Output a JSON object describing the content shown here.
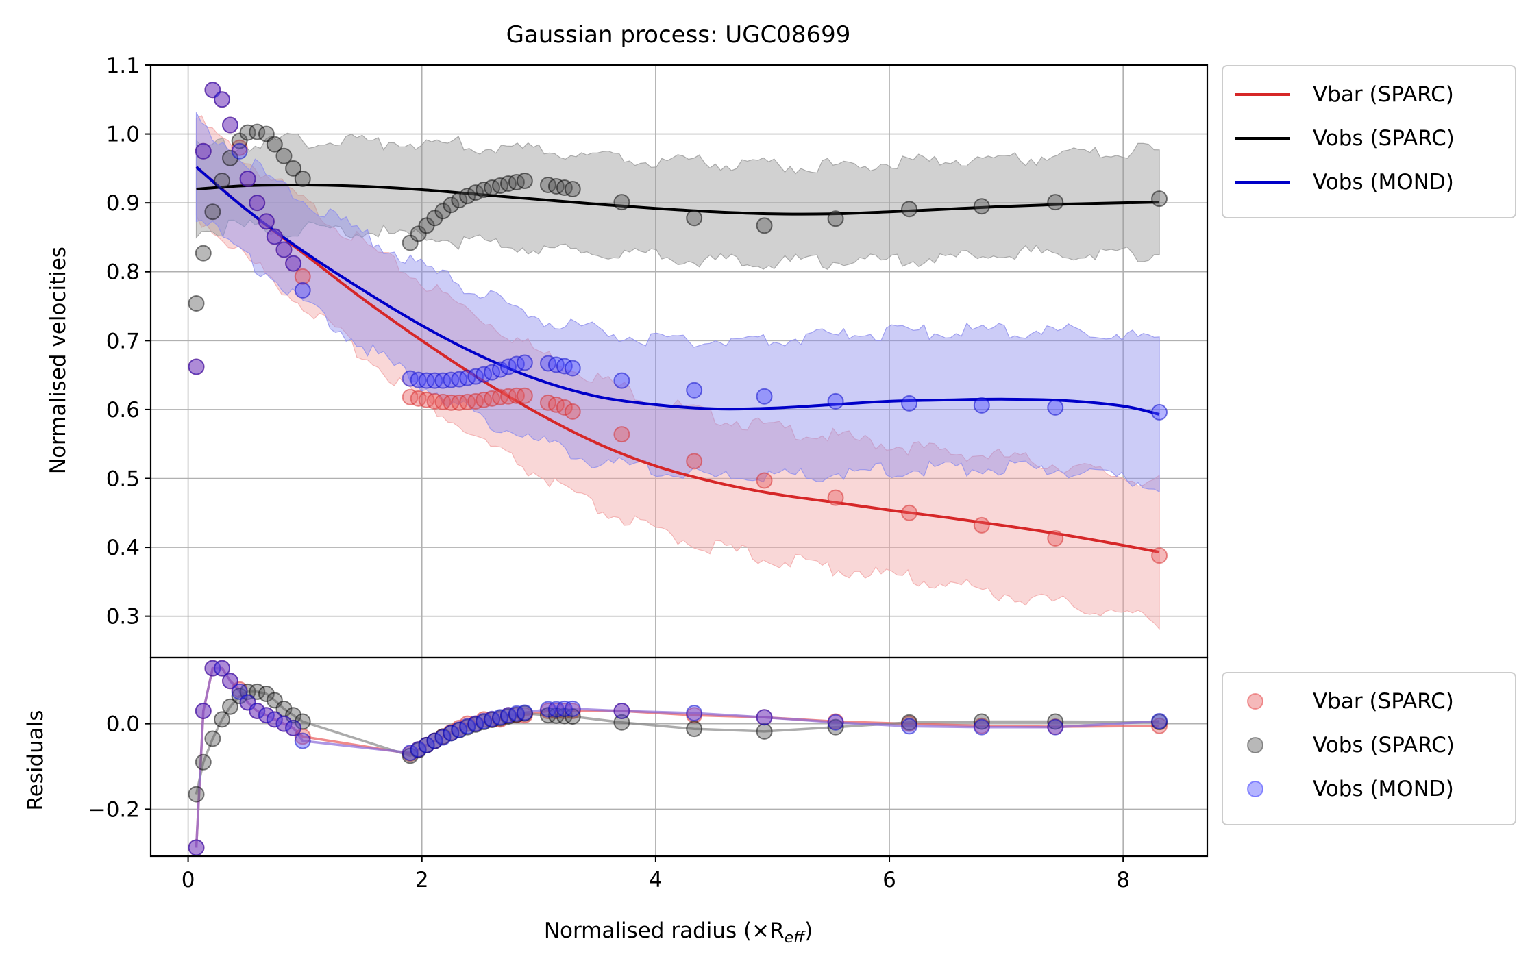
{
  "chart_data": {
    "type": "line",
    "title": "Gaussian process: UGC08699",
    "xlabel_main": "Normalised radius (×R",
    "xlabel_sub": "eff",
    "xlabel_close": ")",
    "ylabel_top": "Normalised velocities",
    "ylabel_bottom": "Residuals",
    "xlim": [
      -0.32,
      8.72
    ],
    "ylim_top": [
      0.24,
      1.1
    ],
    "ylim_bottom": [
      -0.31,
      0.155
    ],
    "xticks": [
      0,
      2,
      4,
      6,
      8
    ],
    "xtick_labels": [
      "0",
      "2",
      "4",
      "6",
      "8"
    ],
    "yticks_top": [
      0.3,
      0.4,
      0.5,
      0.6,
      0.7,
      0.8,
      0.9,
      1.0,
      1.1
    ],
    "ytick_labels_top": [
      "0.3",
      "0.4",
      "0.5",
      "0.6",
      "0.7",
      "0.8",
      "0.9",
      "1.0",
      "1.1"
    ],
    "yticks_bottom": [
      -0.2,
      0.0
    ],
    "ytick_labels_bottom": [
      "−0.2",
      "0.0"
    ],
    "grid": true,
    "legend_top": {
      "placement": "outside-right-top",
      "entries": [
        {
          "label": "Vbar (SPARC)",
          "color": "#d62728"
        },
        {
          "label": "Vobs (SPARC)",
          "color": "#000000"
        },
        {
          "label": "Vobs (MOND)",
          "color": "#0000c8"
        }
      ]
    },
    "legend_bottom": {
      "placement": "outside-right",
      "entries": [
        {
          "label": "Vbar (SPARC)",
          "color": "#e8595a"
        },
        {
          "label": "Vobs (SPARC)",
          "color": "#555555"
        },
        {
          "label": "Vobs (MOND)",
          "color": "#4d4dff"
        }
      ]
    },
    "x": [
      0.07,
      0.13,
      0.21,
      0.29,
      0.36,
      0.44,
      0.51,
      0.59,
      0.67,
      0.74,
      0.82,
      0.9,
      0.98,
      1.9,
      1.97,
      2.04,
      2.11,
      2.18,
      2.25,
      2.32,
      2.39,
      2.46,
      2.53,
      2.6,
      2.67,
      2.74,
      2.81,
      2.88,
      3.08,
      3.15,
      3.22,
      3.29,
      3.71,
      4.33,
      4.93,
      5.54,
      6.17,
      6.79,
      7.42,
      8.31
    ],
    "series_points": [
      {
        "name": "Vbar (SPARC)",
        "color": "#d62728",
        "values": [
          0.662,
          0.975,
          1.064,
          1.05,
          1.013,
          0.98,
          0.935,
          0.9,
          0.873,
          0.851,
          0.832,
          0.812,
          0.793,
          0.618,
          0.616,
          0.614,
          0.612,
          0.611,
          0.61,
          0.61,
          0.611,
          0.612,
          0.614,
          0.616,
          0.618,
          0.619,
          0.62,
          0.62,
          0.61,
          0.607,
          0.603,
          0.597,
          0.564,
          0.525,
          0.497,
          0.472,
          0.45,
          0.432,
          0.413,
          0.388
        ]
      },
      {
        "name": "Vobs (SPARC)",
        "color": "#000000",
        "values": [
          0.754,
          0.827,
          0.887,
          0.932,
          0.965,
          0.99,
          1.002,
          1.003,
          1.0,
          0.985,
          0.968,
          0.95,
          0.935,
          0.842,
          0.855,
          0.867,
          0.878,
          0.888,
          0.897,
          0.904,
          0.91,
          0.915,
          0.919,
          0.922,
          0.925,
          0.928,
          0.93,
          0.932,
          0.926,
          0.924,
          0.922,
          0.92,
          0.901,
          0.878,
          0.867,
          0.877,
          0.891,
          0.895,
          0.901,
          0.906
        ]
      },
      {
        "name": "Vobs (MOND)",
        "color": "#0000c8",
        "values": [
          0.662,
          0.975,
          1.064,
          1.05,
          1.013,
          0.975,
          0.935,
          0.9,
          0.873,
          0.851,
          0.832,
          0.812,
          0.773,
          0.645,
          0.643,
          0.642,
          0.642,
          0.642,
          0.643,
          0.644,
          0.646,
          0.648,
          0.651,
          0.654,
          0.658,
          0.662,
          0.666,
          0.668,
          0.667,
          0.665,
          0.663,
          0.66,
          0.642,
          0.628,
          0.619,
          0.612,
          0.609,
          0.606,
          0.603,
          0.596
        ]
      }
    ],
    "fit_x": [
      0.07,
      0.5,
      1.0,
      1.5,
      2.0,
      2.5,
      3.0,
      3.5,
      4.0,
      4.5,
      5.0,
      5.5,
      6.0,
      6.5,
      7.0,
      7.5,
      8.0,
      8.31
    ],
    "fit_lines": [
      {
        "name": "Vbar (SPARC)",
        "color": "#d62728",
        "values": [
          0.952,
          0.89,
          0.825,
          0.76,
          0.7,
          0.644,
          0.594,
          0.551,
          0.518,
          0.495,
          0.478,
          0.466,
          0.454,
          0.443,
          0.431,
          0.418,
          0.403,
          0.393
        ],
        "band_half": [
          0.07,
          0.07,
          0.075,
          0.08,
          0.085,
          0.09,
          0.09,
          0.095,
          0.095,
          0.095,
          0.095,
          0.095,
          0.095,
          0.095,
          0.1,
          0.1,
          0.1,
          0.1
        ]
      },
      {
        "name": "Vobs (SPARC)",
        "color": "#000000",
        "values": [
          0.92,
          0.925,
          0.926,
          0.924,
          0.919,
          0.912,
          0.905,
          0.898,
          0.892,
          0.887,
          0.884,
          0.884,
          0.887,
          0.891,
          0.895,
          0.898,
          0.9,
          0.901
        ],
        "band_half": [
          0.06,
          0.06,
          0.065,
          0.065,
          0.07,
          0.07,
          0.07,
          0.07,
          0.07,
          0.07,
          0.07,
          0.07,
          0.07,
          0.07,
          0.07,
          0.07,
          0.075,
          0.075
        ]
      },
      {
        "name": "Vobs (MOND)",
        "color": "#0000c8",
        "values": [
          0.952,
          0.89,
          0.828,
          0.773,
          0.722,
          0.678,
          0.643,
          0.619,
          0.607,
          0.601,
          0.602,
          0.607,
          0.612,
          0.614,
          0.615,
          0.613,
          0.605,
          0.593
        ],
        "band_half": [
          0.07,
          0.07,
          0.075,
          0.08,
          0.085,
          0.09,
          0.09,
          0.095,
          0.095,
          0.1,
          0.1,
          0.1,
          0.1,
          0.1,
          0.1,
          0.1,
          0.105,
          0.105
        ]
      }
    ],
    "residuals": [
      {
        "name": "Vbar (SPARC)",
        "color": "#d62728",
        "values": [
          -0.29,
          0.03,
          0.13,
          0.13,
          0.1,
          0.08,
          0.05,
          0.03,
          0.02,
          0.01,
          0.0,
          -0.01,
          -0.03,
          -0.07,
          -0.06,
          -0.05,
          -0.04,
          -0.03,
          -0.02,
          -0.01,
          0.0,
          0.0,
          0.01,
          0.01,
          0.01,
          0.02,
          0.02,
          0.02,
          0.03,
          0.03,
          0.03,
          0.03,
          0.03,
          0.02,
          0.015,
          0.005,
          0.0,
          -0.005,
          -0.007,
          -0.005
        ]
      },
      {
        "name": "Vobs (SPARC)",
        "color": "#000000",
        "values": [
          -0.165,
          -0.09,
          -0.035,
          0.01,
          0.04,
          0.065,
          0.075,
          0.075,
          0.07,
          0.055,
          0.035,
          0.02,
          0.005,
          -0.075,
          -0.062,
          -0.05,
          -0.04,
          -0.03,
          -0.022,
          -0.015,
          -0.008,
          -0.002,
          0.004,
          0.009,
          0.013,
          0.017,
          0.021,
          0.024,
          0.02,
          0.019,
          0.018,
          0.017,
          0.003,
          -0.012,
          -0.018,
          -0.008,
          0.003,
          0.005,
          0.005,
          0.004
        ]
      },
      {
        "name": "Vobs (MOND)",
        "color": "#0000c8",
        "values": [
          -0.29,
          0.03,
          0.13,
          0.13,
          0.1,
          0.075,
          0.05,
          0.03,
          0.02,
          0.01,
          0.0,
          -0.01,
          -0.04,
          -0.068,
          -0.06,
          -0.05,
          -0.04,
          -0.032,
          -0.022,
          -0.014,
          -0.006,
          0.0,
          0.006,
          0.011,
          0.015,
          0.02,
          0.024,
          0.026,
          0.034,
          0.034,
          0.035,
          0.035,
          0.03,
          0.025,
          0.015,
          0.003,
          -0.006,
          -0.008,
          -0.008,
          0.006
        ]
      }
    ]
  }
}
